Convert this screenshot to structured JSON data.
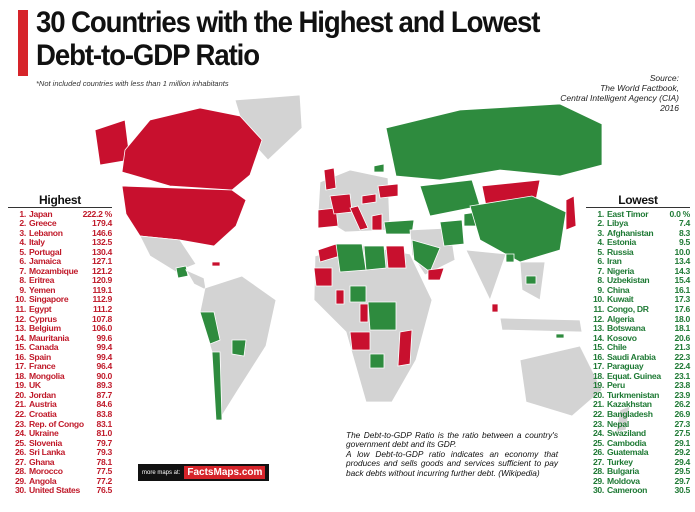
{
  "header": {
    "title_line1": "30 Countries with the Highest and Lowest",
    "title_line2": "Debt-to-GDP Ratio",
    "note": "*Not included countries with less than 1 million inhabitants",
    "source": [
      "Source:",
      "The World Factbook,",
      "Central Intelligent Agency (CIA)",
      "2016"
    ]
  },
  "highest": {
    "heading": "Highest",
    "rows": [
      [
        "1.",
        "Japan",
        "222.2 %"
      ],
      [
        "2.",
        "Greece",
        "179.4"
      ],
      [
        "3.",
        "Lebanon",
        "146.6"
      ],
      [
        "4.",
        "Italy",
        "132.5"
      ],
      [
        "5.",
        "Portugal",
        "130.4"
      ],
      [
        "6.",
        "Jamaica",
        "127.1"
      ],
      [
        "7.",
        "Mozambique",
        "121.2"
      ],
      [
        "8.",
        "Eritrea",
        "120.9"
      ],
      [
        "9.",
        "Yemen",
        "119.1"
      ],
      [
        "10.",
        "Singapore",
        "112.9"
      ],
      [
        "11.",
        "Egypt",
        "111.2"
      ],
      [
        "12.",
        "Cyprus",
        "107.8"
      ],
      [
        "13.",
        "Belgium",
        "106.0"
      ],
      [
        "14.",
        "Mauritania",
        "99.6"
      ],
      [
        "15.",
        "Canada",
        "99.4"
      ],
      [
        "16.",
        "Spain",
        "99.4"
      ],
      [
        "17.",
        "France",
        "96.4"
      ],
      [
        "18.",
        "Mongolia",
        "90.0"
      ],
      [
        "19.",
        "UK",
        "89.3"
      ],
      [
        "20.",
        "Jordan",
        "87.7"
      ],
      [
        "21.",
        "Austria",
        "84.6"
      ],
      [
        "22.",
        "Croatia",
        "83.8"
      ],
      [
        "23.",
        "Rep. of Congo",
        "83.1"
      ],
      [
        "24.",
        "Ukraine",
        "81.0"
      ],
      [
        "25.",
        "Slovenia",
        "79.7"
      ],
      [
        "26.",
        "Sri Lanka",
        "79.3"
      ],
      [
        "27.",
        "Ghana",
        "78.1"
      ],
      [
        "28.",
        "Morocco",
        "77.5"
      ],
      [
        "29.",
        "Angola",
        "77.2"
      ],
      [
        "30.",
        "United States",
        "76.5"
      ]
    ]
  },
  "lowest": {
    "heading": "Lowest",
    "rows": [
      [
        "1.",
        "East Timor",
        "0.0 %"
      ],
      [
        "2.",
        "Libya",
        "7.4"
      ],
      [
        "3.",
        "Afghanistan",
        "8.3"
      ],
      [
        "4.",
        "Estonia",
        "9.5"
      ],
      [
        "5.",
        "Russia",
        "10.0"
      ],
      [
        "6.",
        "Iran",
        "13.4"
      ],
      [
        "7.",
        "Nigeria",
        "14.3"
      ],
      [
        "8.",
        "Uzbekistan",
        "15.4"
      ],
      [
        "9.",
        "China",
        "16.1"
      ],
      [
        "10.",
        "Kuwait",
        "17.3"
      ],
      [
        "11.",
        "Congo, DR",
        "17.6"
      ],
      [
        "12.",
        "Algeria",
        "18.0"
      ],
      [
        "13.",
        "Botswana",
        "18.1"
      ],
      [
        "14.",
        "Kosovo",
        "20.6"
      ],
      [
        "15.",
        "Chile",
        "21.3"
      ],
      [
        "16.",
        "Saudi Arabia",
        "22.3"
      ],
      [
        "17.",
        "Paraguay",
        "22.4"
      ],
      [
        "18.",
        "Equat. Guinea",
        "23.1"
      ],
      [
        "19.",
        "Peru",
        "23.8"
      ],
      [
        "20.",
        "Turkmenistan",
        "23.9"
      ],
      [
        "21.",
        "Kazakhstan",
        "26.2"
      ],
      [
        "22.",
        "Bangladesh",
        "26.9"
      ],
      [
        "23.",
        "Nepal",
        "27.3"
      ],
      [
        "24.",
        "Swaziland",
        "27.5"
      ],
      [
        "25.",
        "Cambodia",
        "29.1"
      ],
      [
        "26.",
        "Guatemala",
        "29.2"
      ],
      [
        "27.",
        "Turkey",
        "29.4"
      ],
      [
        "28.",
        "Bulgaria",
        "29.5"
      ],
      [
        "29.",
        "Moldova",
        "29.7"
      ],
      [
        "30.",
        "Cameroon",
        "30.5"
      ]
    ]
  },
  "explanation": [
    "The Debt-to-GDP Ratio is the ratio between a country's government debt and its GDP.",
    "A low Debt-to-GDP ratio indicates an economy that produces and sells goods and services sufficient to pay back debts without incurring further debt. (Wikipedia)"
  ],
  "footer": {
    "label": "more maps at:",
    "brand": "FactsMaps.com"
  }
}
